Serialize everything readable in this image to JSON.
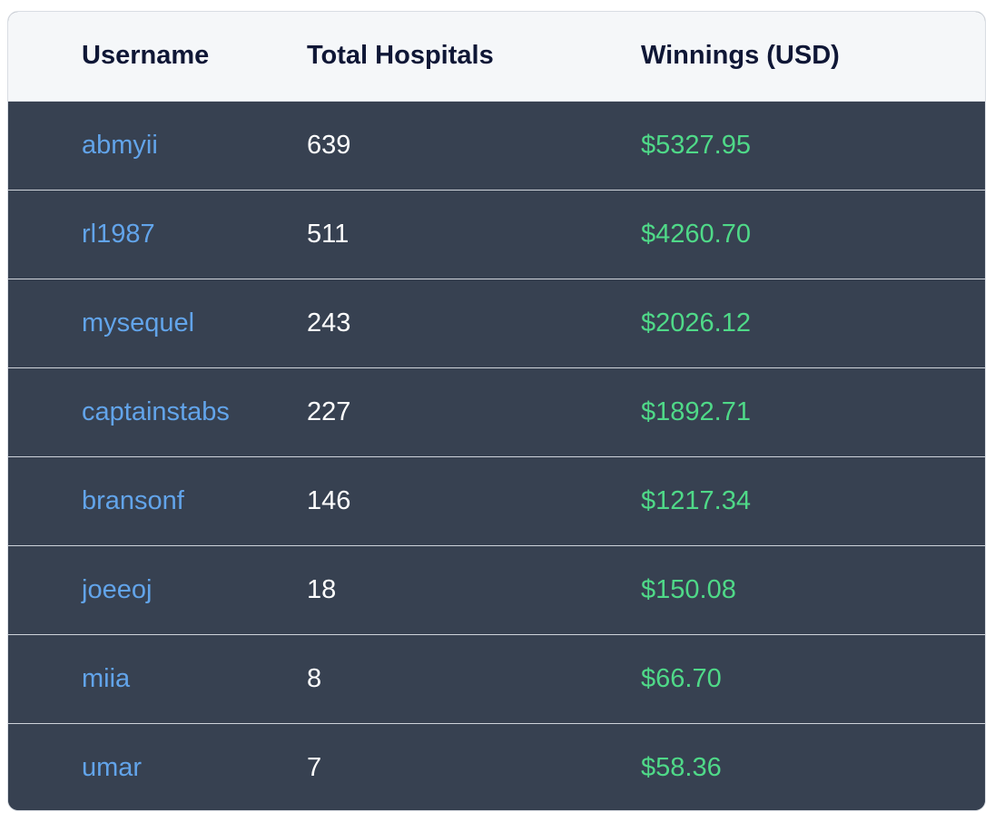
{
  "table": {
    "headers": {
      "username": "Username",
      "hospitals": "Total Hospitals",
      "winnings": "Winnings (USD)"
    },
    "rows": [
      {
        "username": "abmyii",
        "hospitals": "639",
        "winnings": "$5327.95"
      },
      {
        "username": "rl1987",
        "hospitals": "511",
        "winnings": "$4260.70"
      },
      {
        "username": "mysequel",
        "hospitals": "243",
        "winnings": "$2026.12"
      },
      {
        "username": "captainstabs",
        "hospitals": "227",
        "winnings": "$1892.71"
      },
      {
        "username": "bransonf",
        "hospitals": "146",
        "winnings": "$1217.34"
      },
      {
        "username": "joeeoj",
        "hospitals": "18",
        "winnings": "$150.08"
      },
      {
        "username": "miia",
        "hospitals": "8",
        "winnings": "$66.70"
      },
      {
        "username": "umar",
        "hospitals": "7",
        "winnings": "$58.36"
      }
    ]
  },
  "colors": {
    "header_bg": "#f5f7f9",
    "header_text": "#0f1736",
    "row_bg": "#374151",
    "username_link": "#62a4ea",
    "count_text": "#ffffff",
    "winnings_text": "#4fd988"
  }
}
